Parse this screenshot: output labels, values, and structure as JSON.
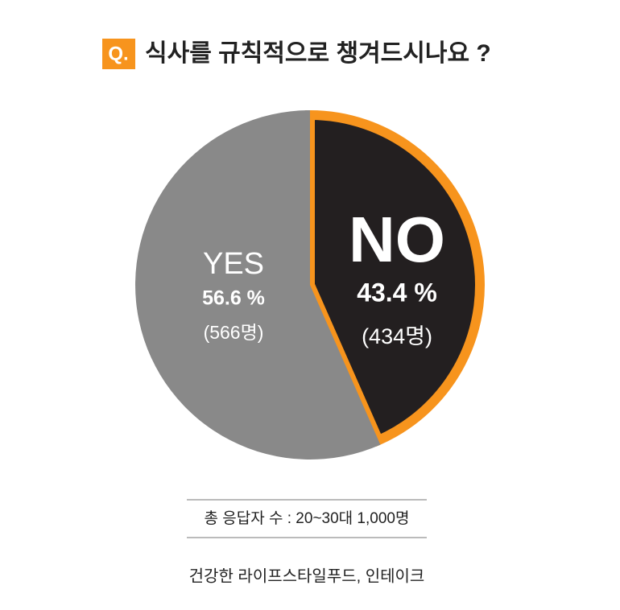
{
  "chart_data": {
    "type": "pie",
    "badge": "Q.",
    "title": "식사를 규칙적으로 챙겨드시나요 ?",
    "categories": [
      "NO",
      "YES"
    ],
    "values": [
      43.4,
      56.6
    ],
    "value_labels": [
      "43.4 %",
      "56.6 %"
    ],
    "count_labels": [
      "(434명)",
      "(566명)"
    ],
    "colors": [
      "#231f20",
      "#898989"
    ],
    "highlight_color": "#f7941d",
    "note": "총 응답자 수 : 20~30대 1,000명",
    "source": "건강한 라이프스타일푸드, 인테이크"
  }
}
